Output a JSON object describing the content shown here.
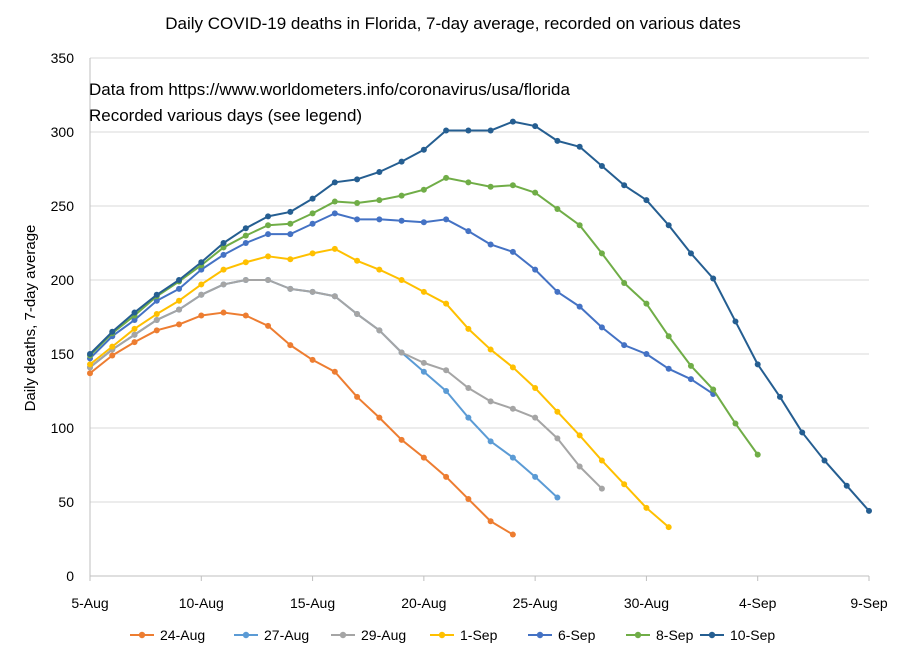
{
  "chart_data": {
    "type": "line",
    "title": "Daily COVID-19 deaths in Florida, 7-day average, recorded on various dates",
    "ylabel": "Daily deaths, 7-day average",
    "xlabel": "",
    "annotations": [
      "Data from https://www.worldometers.info/coronavirus/usa/florida",
      "Recorded various days (see legend)"
    ],
    "x_tick_labels": [
      "5-Aug",
      "10-Aug",
      "15-Aug",
      "20-Aug",
      "25-Aug",
      "30-Aug",
      "4-Sep",
      "9-Sep"
    ],
    "x_dates": [
      "2020-08-05",
      "2020-08-10",
      "2020-08-15",
      "2020-08-20",
      "2020-08-25",
      "2020-08-30",
      "2020-09-04",
      "2020-09-09"
    ],
    "y_ticks": [
      "0",
      "50",
      "100",
      "150",
      "200",
      "250",
      "300",
      "350"
    ],
    "ylim": [
      0,
      350
    ],
    "grid": "horizontal",
    "legend_position": "bottom",
    "series": [
      {
        "name": "24-Aug",
        "color": "#ED7D31",
        "start_date": "2020-08-05",
        "values": [
          137,
          149,
          158,
          166,
          170,
          176,
          178,
          176,
          169,
          156,
          146,
          138,
          121,
          107,
          92,
          80,
          67,
          52,
          37,
          28
        ]
      },
      {
        "name": "27-Aug",
        "color": "#5B9BD5",
        "start_date": "2020-08-05",
        "values": [
          141,
          153,
          163,
          173,
          180,
          190,
          197,
          200,
          200,
          194,
          192,
          189,
          177,
          166,
          151,
          138,
          125,
          107,
          91,
          80,
          67,
          53
        ]
      },
      {
        "name": "29-Aug",
        "color": "#A5A5A5",
        "start_date": "2020-08-05",
        "values": [
          141,
          153,
          163,
          173,
          180,
          190,
          197,
          200,
          200,
          194,
          192,
          189,
          177,
          166,
          151,
          144,
          139,
          127,
          118,
          113,
          107,
          93,
          74,
          59
        ]
      },
      {
        "name": "1-Sep",
        "color": "#FFC000",
        "start_date": "2020-08-05",
        "values": [
          143,
          155,
          167,
          177,
          186,
          197,
          207,
          212,
          216,
          214,
          218,
          221,
          213,
          207,
          200,
          192,
          184,
          167,
          153,
          141,
          127,
          111,
          95,
          78,
          62,
          46,
          33
        ]
      },
      {
        "name": "6-Sep",
        "color": "#4472C4",
        "start_date": "2020-08-05",
        "values": [
          147,
          162,
          173,
          186,
          194,
          207,
          217,
          225,
          231,
          231,
          238,
          245,
          241,
          241,
          240,
          239,
          241,
          233,
          224,
          219,
          207,
          192,
          182,
          168,
          156,
          150,
          140,
          133,
          123
        ]
      },
      {
        "name": "8-Sep",
        "color": "#70AD47",
        "start_date": "2020-08-05",
        "values": [
          149,
          164,
          176,
          189,
          199,
          210,
          222,
          230,
          237,
          238,
          245,
          253,
          252,
          254,
          257,
          261,
          269,
          266,
          263,
          264,
          259,
          248,
          237,
          218,
          198,
          184,
          162,
          142,
          126,
          103,
          82
        ]
      },
      {
        "name": "10-Sep",
        "color": "#255E91",
        "start_date": "2020-08-05",
        "values": [
          150,
          165,
          178,
          190,
          200,
          212,
          225,
          235,
          243,
          246,
          255,
          266,
          268,
          273,
          280,
          288,
          301,
          301,
          301,
          307,
          304,
          294,
          290,
          277,
          264,
          254,
          237,
          218,
          201,
          172,
          143,
          121,
          97,
          78,
          61,
          44
        ]
      }
    ]
  }
}
